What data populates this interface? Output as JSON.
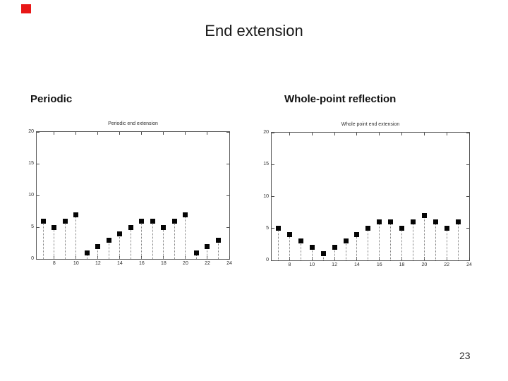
{
  "slide": {
    "title": "End extension",
    "page_number": "23",
    "background": "#ffffff",
    "corner_marker_color": "#e81717"
  },
  "labels": {
    "left": "Periodic",
    "right": "Whole-point reflection"
  },
  "chart_data": [
    {
      "type": "scatter",
      "subtype": "stem",
      "title": "Periodic end extension",
      "x": [
        7,
        8,
        9,
        10,
        11,
        12,
        13,
        14,
        15,
        16,
        17,
        18,
        19,
        20,
        21,
        22,
        23
      ],
      "values": [
        6,
        5,
        6,
        7,
        1,
        2,
        3,
        4,
        5,
        6,
        6,
        5,
        6,
        7,
        1,
        2,
        3
      ],
      "xlim": [
        6.4,
        24
      ],
      "ylim": [
        0,
        20
      ],
      "xticks": [
        8,
        10,
        12,
        14,
        16,
        18,
        20,
        22,
        24
      ],
      "yticks": [
        0,
        5,
        10,
        15,
        20
      ],
      "xlabel": "",
      "ylabel": "",
      "grid": false,
      "legend": "none",
      "marker": "black-filled-square",
      "stem_line": "dotted-gray"
    },
    {
      "type": "scatter",
      "subtype": "stem",
      "title": "Whole point end extension",
      "x": [
        7,
        8,
        9,
        10,
        11,
        12,
        13,
        14,
        15,
        16,
        17,
        18,
        19,
        20,
        21,
        22,
        23
      ],
      "values": [
        5,
        4,
        3,
        2,
        1,
        2,
        3,
        4,
        5,
        6,
        6,
        5,
        6,
        7,
        6,
        5,
        6
      ],
      "xlim": [
        6.4,
        24
      ],
      "ylim": [
        0,
        20
      ],
      "xticks": [
        8,
        10,
        12,
        14,
        16,
        18,
        20,
        22,
        24
      ],
      "yticks": [
        0,
        5,
        10,
        15,
        20
      ],
      "xlabel": "",
      "ylabel": "",
      "grid": false,
      "legend": "none",
      "marker": "black-filled-square",
      "stem_line": "dotted-gray"
    }
  ]
}
